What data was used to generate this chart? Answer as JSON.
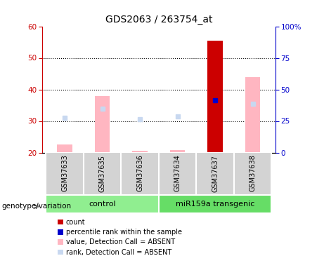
{
  "title": "GDS2063 / 263754_at",
  "samples": [
    "GSM37633",
    "GSM37635",
    "GSM37636",
    "GSM37634",
    "GSM37637",
    "GSM37638"
  ],
  "groups": [
    {
      "label": "control",
      "indices": [
        0,
        1,
        2
      ],
      "color": "#90EE90"
    },
    {
      "label": "miR159a transgenic",
      "indices": [
        3,
        4,
        5
      ],
      "color": "#66DD66"
    }
  ],
  "ylim_left": [
    20,
    60
  ],
  "ylim_right": [
    0,
    100
  ],
  "yticks_left": [
    20,
    30,
    40,
    50,
    60
  ],
  "yticks_right": [
    0,
    25,
    50,
    75,
    100
  ],
  "yticklabels_right": [
    "0",
    "25",
    "50",
    "75",
    "100%"
  ],
  "pink_bar_bottom": 20,
  "pink_bar_tops": [
    22.5,
    38.0,
    20.5,
    20.7,
    20.0,
    44.0
  ],
  "light_blue_rank_vals": [
    31.0,
    34.0,
    30.5,
    31.5,
    null,
    35.5
  ],
  "dark_red_bar": {
    "index": 4,
    "value": 55.5
  },
  "blue_square": {
    "index": 4,
    "value": 36.5
  },
  "legend_items": [
    {
      "color": "#CC0000",
      "label": "count"
    },
    {
      "color": "#0000CC",
      "label": "percentile rank within the sample"
    },
    {
      "color": "#FFB6C1",
      "label": "value, Detection Call = ABSENT"
    },
    {
      "color": "#C8D8F0",
      "label": "rank, Detection Call = ABSENT"
    }
  ],
  "left_axis_color": "#CC0000",
  "right_axis_color": "#0000CC",
  "bar_width": 0.4,
  "background_color": "#ffffff"
}
